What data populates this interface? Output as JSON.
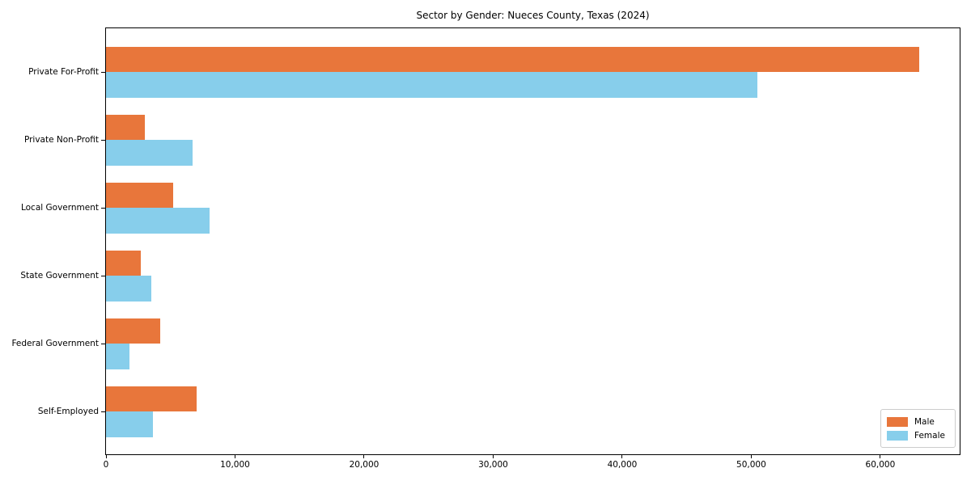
{
  "title": "Sector by Gender: Nueces County, Texas (2024)",
  "colors": {
    "male": "#E8763B",
    "female": "#87CEEB",
    "spine": "#000000",
    "legend_border": "#CCCCCC",
    "background": "#FFFFFF"
  },
  "legend": {
    "items": [
      {
        "label": "Male",
        "color": "#E8763B"
      },
      {
        "label": "Female",
        "color": "#87CEEB"
      }
    ],
    "position": "lower right"
  },
  "chart_data": {
    "type": "bar",
    "orientation": "horizontal",
    "title": "Sector by Gender: Nueces County, Texas (2024)",
    "categories": [
      "Private For-Profit",
      "Private Non-Profit",
      "Local Government",
      "State Government",
      "Federal Government",
      "Self-Employed"
    ],
    "series": [
      {
        "name": "Male",
        "color": "#E8763B",
        "values": [
          63000,
          3000,
          5200,
          2700,
          4200,
          7000
        ]
      },
      {
        "name": "Female",
        "color": "#87CEEB",
        "values": [
          50500,
          6700,
          8000,
          3500,
          1800,
          3650
        ]
      }
    ],
    "xlabel": "",
    "ylabel": "",
    "xlim": [
      0,
      66150
    ],
    "xticks": [
      0,
      10000,
      20000,
      30000,
      40000,
      50000,
      60000
    ],
    "xtick_labels": [
      "0",
      "10,000",
      "20,000",
      "30,000",
      "40,000",
      "50,000",
      "60,000"
    ],
    "grid": false,
    "legend_position": "lower right"
  }
}
